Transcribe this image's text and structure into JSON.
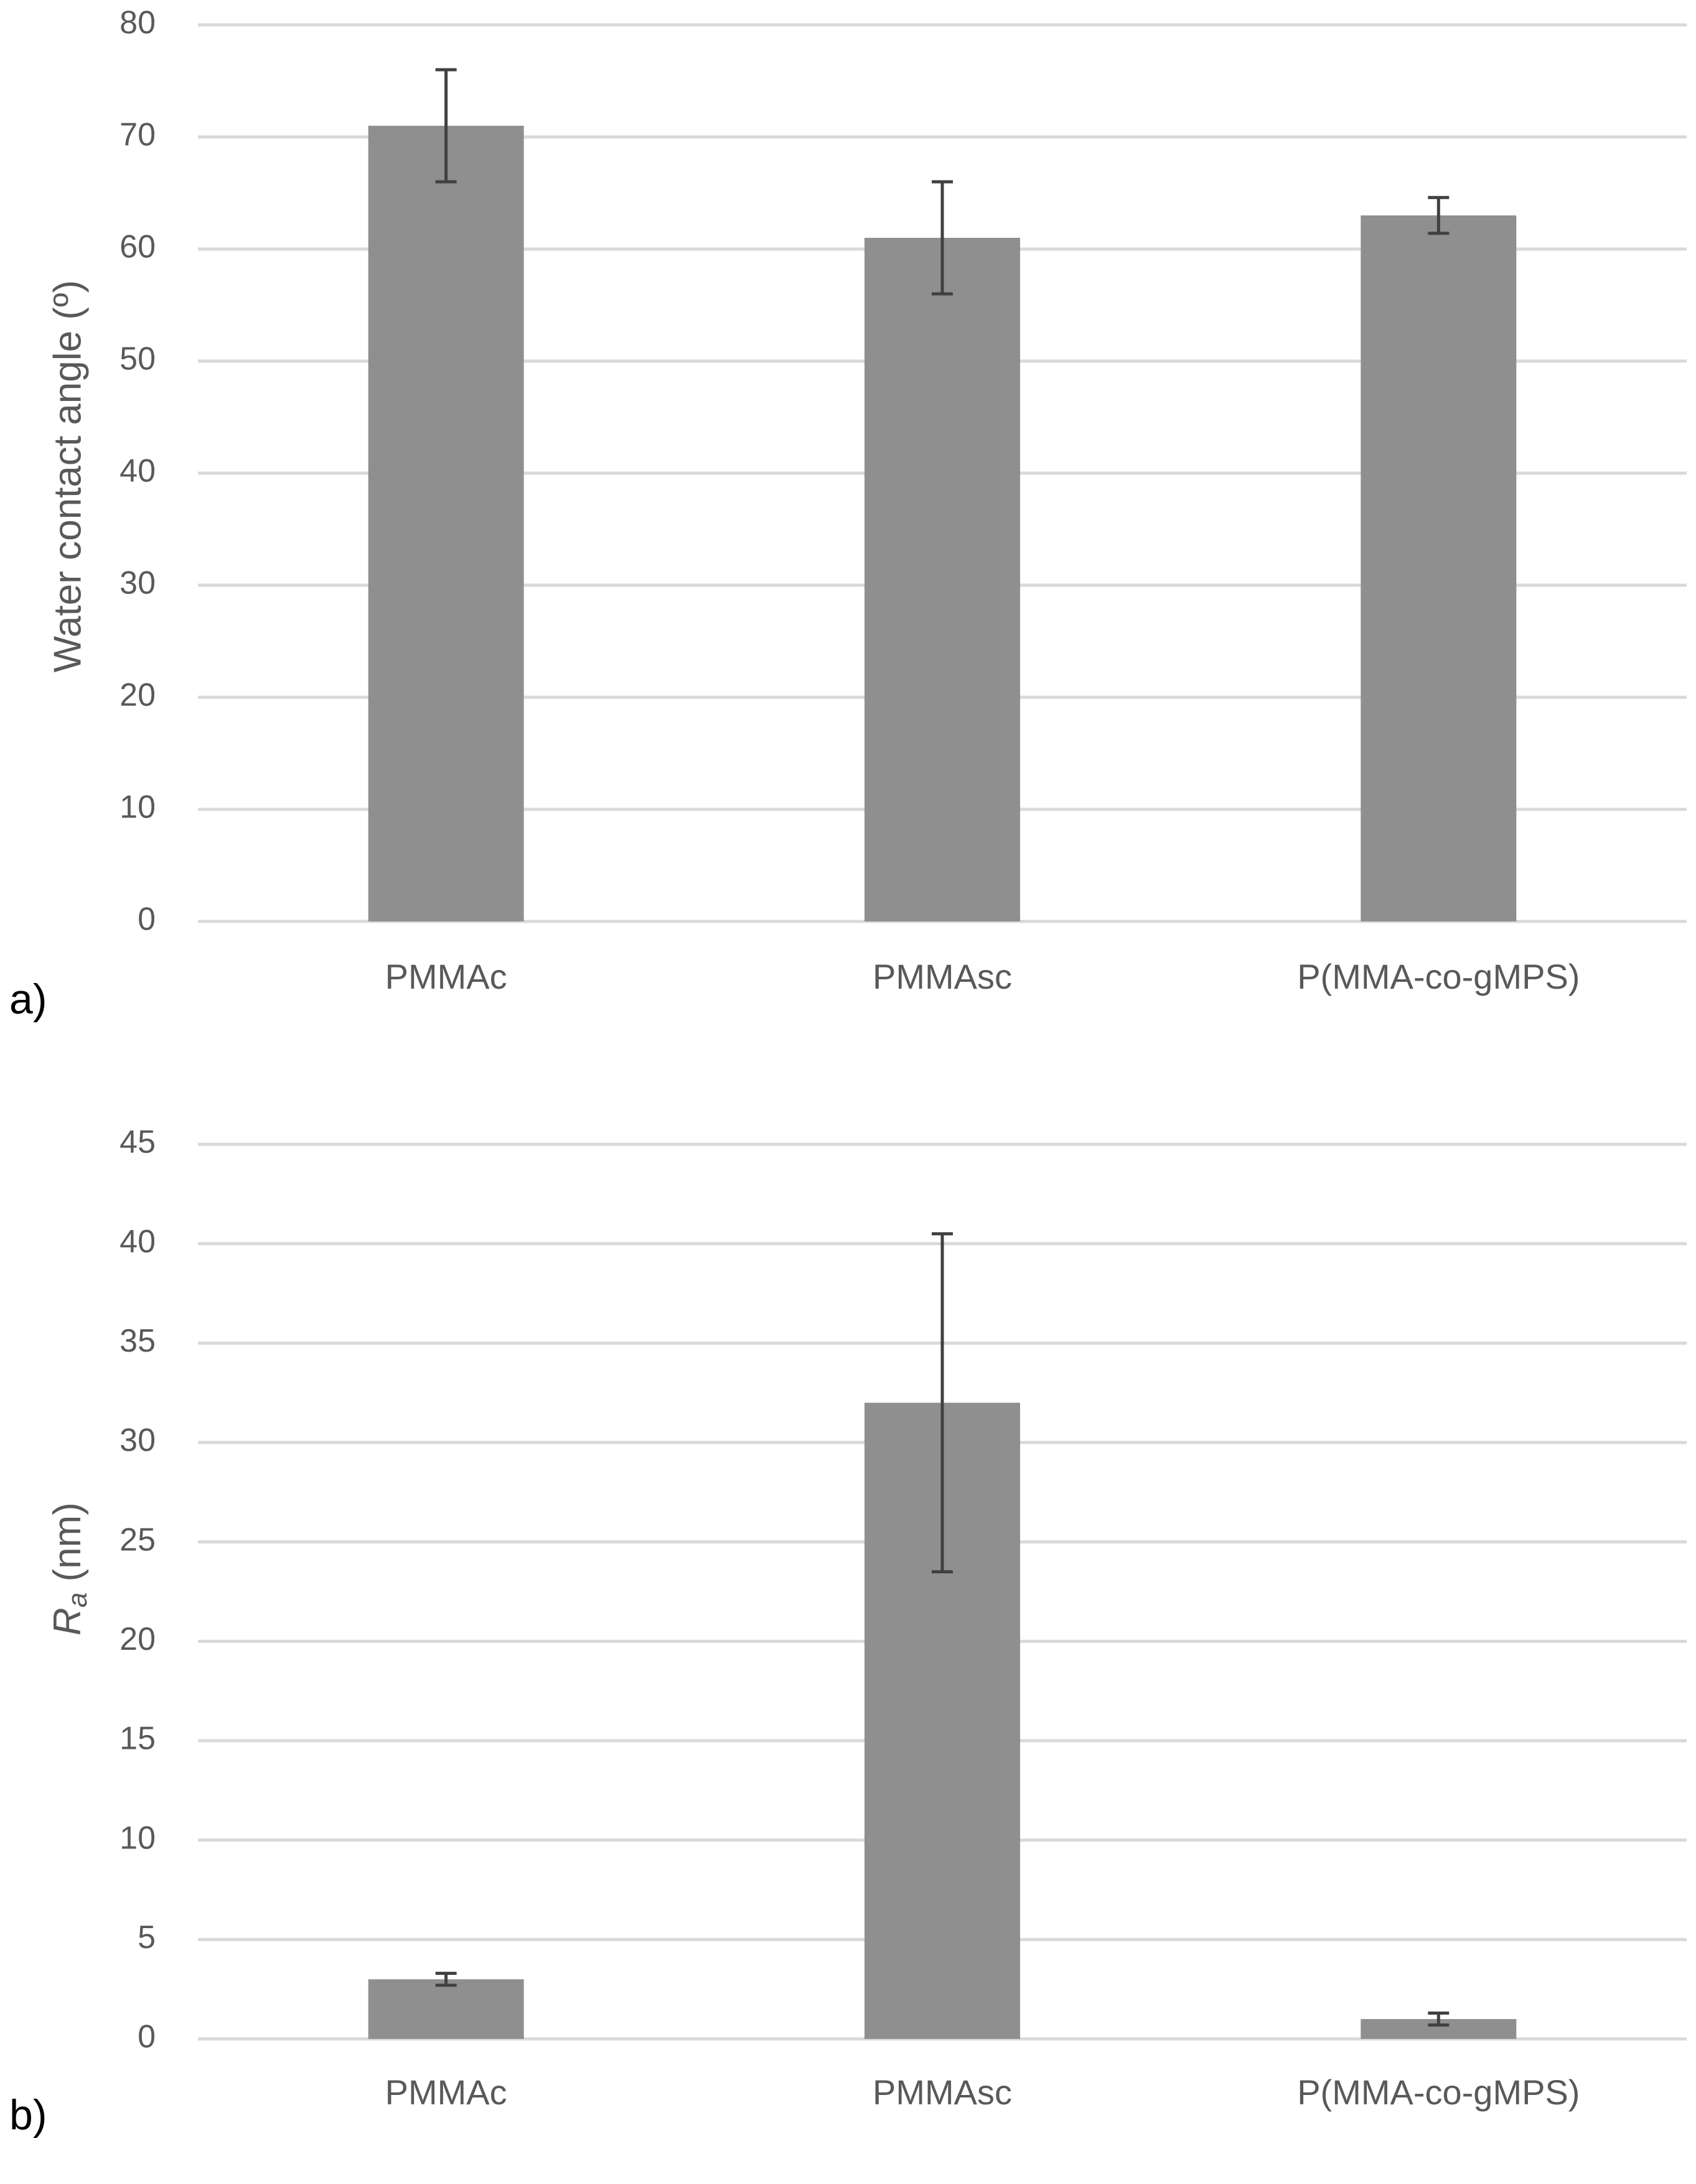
{
  "colors": {
    "bar": "#8f8f8f",
    "grid": "#d9d9d9",
    "error_bar": "#404040",
    "text": "#595959",
    "panel_letter": "#000000"
  },
  "chart_data": [
    {
      "panel": "a)",
      "type": "bar",
      "categories": [
        "PMMAc",
        "PMMAsc",
        "P(MMA-co-gMPS)"
      ],
      "values": [
        71,
        61,
        63
      ],
      "error": [
        5,
        5,
        1.6
      ],
      "ylabel": "Water contact angle (º)",
      "ylim": [
        0,
        80
      ],
      "yticks": [
        0,
        10,
        20,
        30,
        40,
        50,
        60,
        70,
        80
      ],
      "grid": true
    },
    {
      "panel": "b)",
      "type": "bar",
      "categories": [
        "PMMAc",
        "PMMAsc",
        "P(MMA-co-gMPS)"
      ],
      "values": [
        3,
        32,
        1
      ],
      "error": [
        0.3,
        8.5,
        0.3
      ],
      "ylabel": "R",
      "ylabel_subscript": "a",
      "ylabel_suffix": " (nm)",
      "ylim": [
        0,
        45
      ],
      "yticks": [
        0,
        5,
        10,
        15,
        20,
        25,
        30,
        35,
        40,
        45
      ],
      "grid": true
    }
  ]
}
